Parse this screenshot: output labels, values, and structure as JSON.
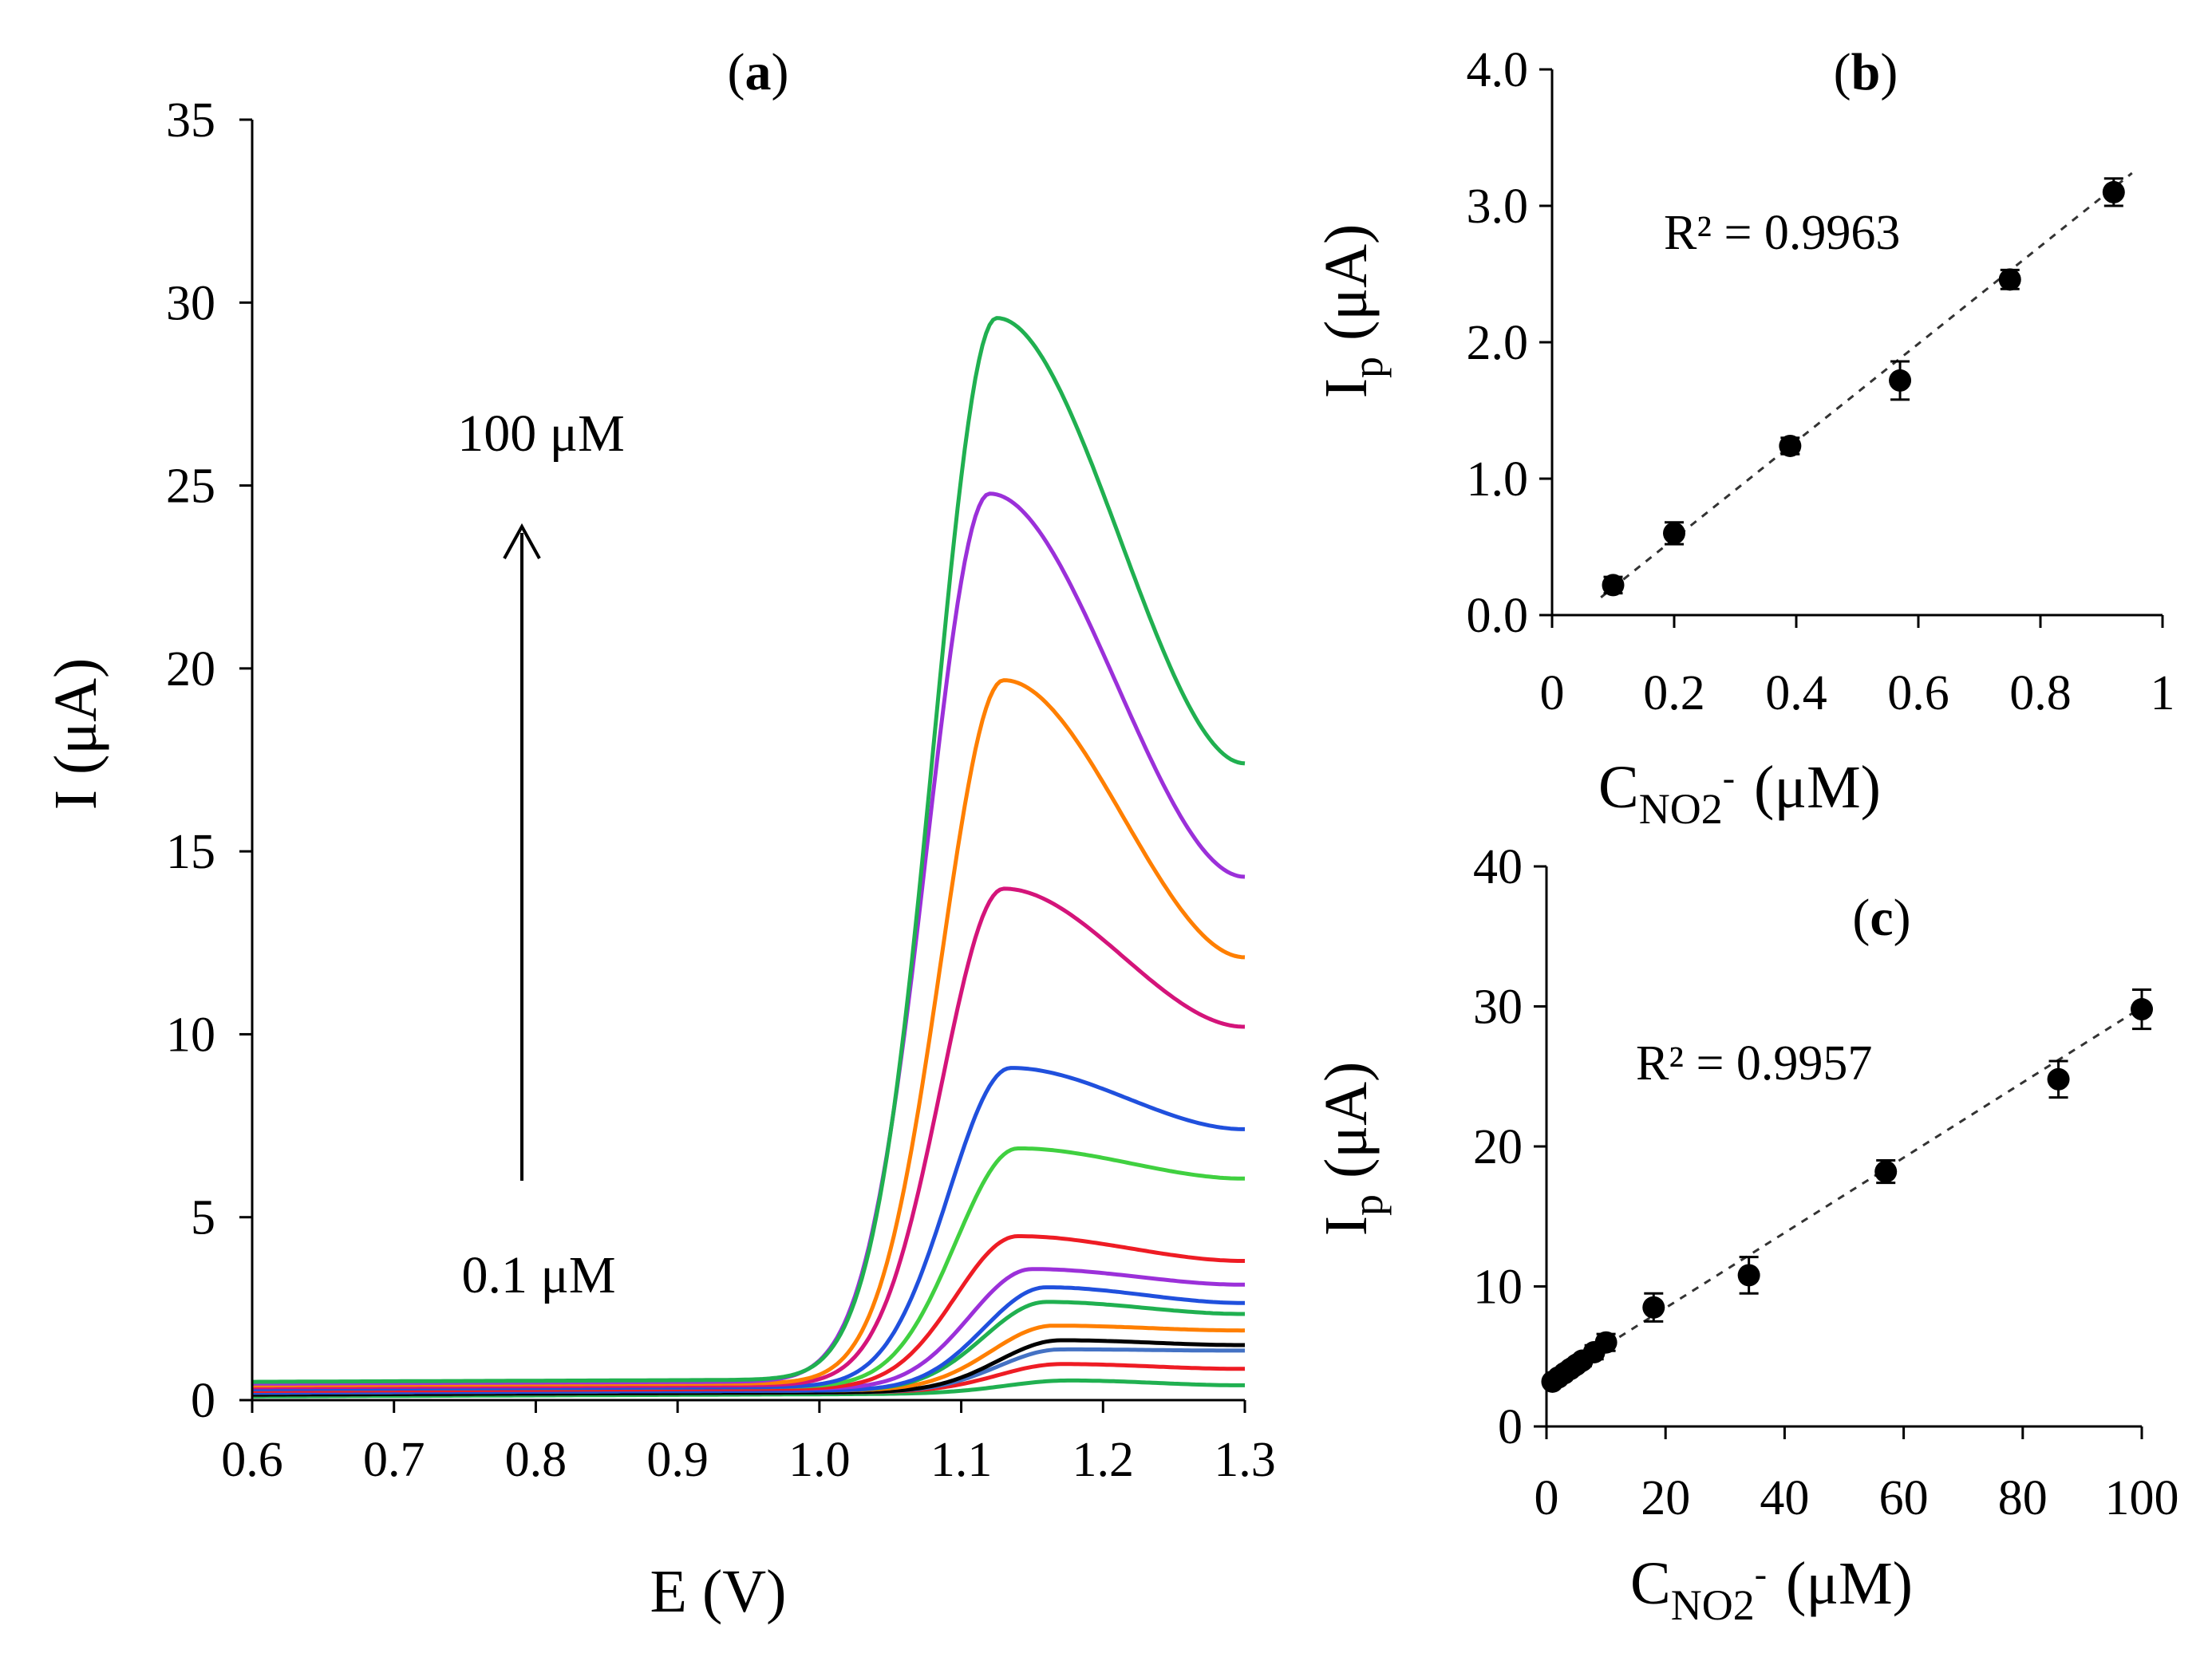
{
  "chart_data": [
    {
      "id": "a",
      "type": "line",
      "title": "(a)",
      "title_letter": "a",
      "xlabel": "E (V)",
      "ylabel": "I (μA)",
      "xlim": [
        0.6,
        1.3
      ],
      "ylim": [
        0,
        35
      ],
      "xticks": [
        "0.6",
        "0.7",
        "0.8",
        "0.9",
        "1.0",
        "1.1",
        "1.2",
        "1.3"
      ],
      "yticks": [
        "0",
        "5",
        "10",
        "15",
        "20",
        "25",
        "30",
        "35"
      ],
      "annotations": {
        "top": "100 μM",
        "bottom": "0.1 μM",
        "arrow": "increasing concentration"
      },
      "series": [
        {
          "name": "s1",
          "color": "#20b050",
          "base": 0.1,
          "peak": 0.45,
          "peak_x": 1.175,
          "end": 0.3
        },
        {
          "name": "s2",
          "color": "#ee1c24",
          "base": 0.15,
          "peak": 0.9,
          "peak_x": 1.17,
          "end": 0.75
        },
        {
          "name": "s3",
          "color": "#4472c4",
          "base": 0.15,
          "peak": 1.3,
          "peak_x": 1.17,
          "end": 1.25
        },
        {
          "name": "s4",
          "color": "#000000",
          "base": 0.15,
          "peak": 1.55,
          "peak_x": 1.17,
          "end": 1.4
        },
        {
          "name": "s5",
          "color": "#ff7f00",
          "base": 0.2,
          "peak": 1.95,
          "peak_x": 1.165,
          "end": 1.8
        },
        {
          "name": "s6",
          "color": "#20b050",
          "base": 0.2,
          "peak": 2.6,
          "peak_x": 1.16,
          "end": 2.25
        },
        {
          "name": "s7",
          "color": "#2050dd",
          "base": 0.2,
          "peak": 3.0,
          "peak_x": 1.16,
          "end": 2.55
        },
        {
          "name": "s8",
          "color": "#9b30d9",
          "base": 0.25,
          "peak": 3.5,
          "peak_x": 1.15,
          "end": 3.05
        },
        {
          "name": "s9",
          "color": "#ee1c24",
          "base": 0.25,
          "peak": 4.4,
          "peak_x": 1.14,
          "end": 3.7
        },
        {
          "name": "s10",
          "color": "#40d040",
          "base": 0.3,
          "peak": 6.8,
          "peak_x": 1.14,
          "end": 5.95
        },
        {
          "name": "s11",
          "color": "#2050dd",
          "base": 0.3,
          "peak": 9.0,
          "peak_x": 1.135,
          "end": 7.3
        },
        {
          "name": "s12",
          "color": "#d4147a",
          "base": 0.35,
          "peak": 13.9,
          "peak_x": 1.13,
          "end": 10.1
        },
        {
          "name": "s13",
          "color": "#ff7f00",
          "base": 0.4,
          "peak": 19.6,
          "peak_x": 1.13,
          "end": 12.0
        },
        {
          "name": "s14",
          "color": "#9b30d9",
          "base": 0.45,
          "peak": 24.7,
          "peak_x": 1.12,
          "end": 14.2
        },
        {
          "name": "s15",
          "color": "#20b050",
          "base": 0.5,
          "peak": 29.5,
          "peak_x": 1.125,
          "end": 17.3
        }
      ]
    },
    {
      "id": "b",
      "type": "scatter",
      "title": "(b)",
      "title_letter": "b",
      "xlabel": "C",
      "xlabel_sub": "NO2",
      "xlabel_sup": "-",
      "xlabel_unit": "(μM)",
      "ylabel": "I",
      "ylabel_sub": "p",
      "ylabel_unit": "(μA)",
      "xlim": [
        0,
        1
      ],
      "ylim": [
        0,
        4
      ],
      "xticks": [
        "0",
        "0.2",
        "0.4",
        "0.6",
        "0.8",
        "1"
      ],
      "yticks": [
        "0.0",
        "1.0",
        "2.0",
        "3.0",
        "4.0"
      ],
      "r2": "R² = 0.9963",
      "x": [
        0.1,
        0.2,
        0.39,
        0.57,
        0.75,
        0.92
      ],
      "y": [
        0.22,
        0.6,
        1.24,
        1.72,
        2.46,
        3.1
      ],
      "err": [
        0.06,
        0.08,
        0.06,
        0.14,
        0.07,
        0.1
      ],
      "fit": {
        "x": [
          0.08,
          0.95
        ],
        "y": [
          0.13,
          3.24
        ]
      }
    },
    {
      "id": "c",
      "type": "scatter",
      "title": "(c)",
      "title_letter": "c",
      "xlabel": "C",
      "xlabel_sub": "NO2",
      "xlabel_sup": "-",
      "xlabel_unit": "(μM)",
      "ylabel": "I",
      "ylabel_sub": "p",
      "ylabel_unit": "(μA)",
      "xlim": [
        0,
        100
      ],
      "ylim": [
        0,
        40
      ],
      "xticks": [
        "0",
        "20",
        "40",
        "60",
        "80",
        "100"
      ],
      "yticks": [
        "0",
        "10",
        "20",
        "30",
        "40"
      ],
      "r2": "R² = 0.9957",
      "x": [
        1,
        2,
        3,
        4,
        5,
        6,
        8,
        10,
        18,
        34,
        57,
        86,
        100
      ],
      "y": [
        3.2,
        3.5,
        3.8,
        4.1,
        4.4,
        4.7,
        5.3,
        6.0,
        8.5,
        10.8,
        18.2,
        24.8,
        29.8
      ],
      "err": [
        0.3,
        0.3,
        0.3,
        0.4,
        0.4,
        0.4,
        0.5,
        0.6,
        1.0,
        1.3,
        0.8,
        1.3,
        1.4
      ],
      "fit": {
        "x": [
          0,
          101
        ],
        "y": [
          3.1,
          30.2
        ]
      }
    }
  ]
}
